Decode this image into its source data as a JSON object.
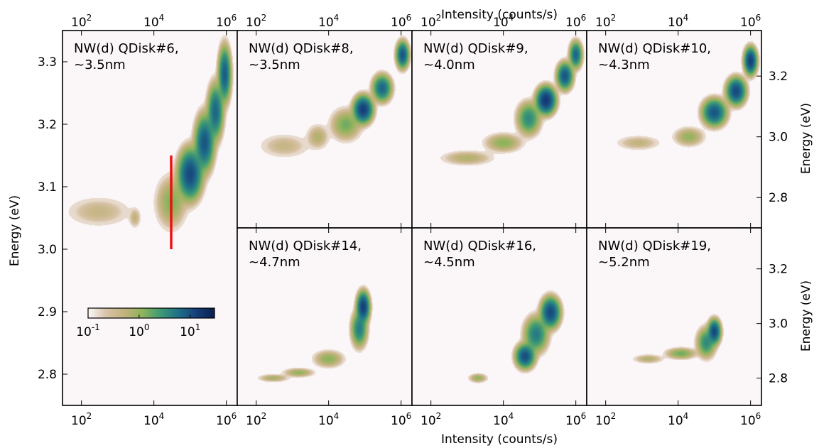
{
  "colors": {
    "background": "#fbf7f9",
    "colormap": [
      "#fbf7f9",
      "#d8c3a8",
      "#c2b27c",
      "#8fb35c",
      "#3f9a74",
      "#1f6f88",
      "#163d7a",
      "#0a1f4d"
    ],
    "marker_line": "#ee1111"
  },
  "chart_data": {
    "type": "heatmap",
    "x_axis": {
      "label_top": "Intensity (counts/s)",
      "label_bottom": "Intensity (counts/s)",
      "scale": "log",
      "range": [
        30,
        2000000
      ],
      "ticks": [
        {
          "value": 100,
          "base": "10",
          "exp": "2"
        },
        {
          "value": 10000,
          "base": "10",
          "exp": "4"
        },
        {
          "value": 1000000,
          "base": "10",
          "exp": "6"
        }
      ]
    },
    "y_axis_label": "Energy (eV)",
    "colorbar": {
      "scale": "log",
      "range": [
        0.1,
        30
      ],
      "ticks": [
        {
          "value": 0.1,
          "base": "10",
          "exp": "-1"
        },
        {
          "value": 1,
          "base": "10",
          "exp": "0"
        },
        {
          "value": 10,
          "base": "10",
          "exp": "1"
        }
      ]
    },
    "panels": [
      {
        "id": "qdisk6",
        "title_line1": "NW(d) QDisk#6,",
        "title_line2": "~3.5nm",
        "ylim": [
          2.75,
          3.35
        ],
        "yticks": [
          "2.8",
          "2.9",
          "3.0",
          "3.1",
          "3.2",
          "3.3"
        ],
        "ytick_side": "left",
        "marker_line": {
          "x": 30000,
          "y_from": 3.0,
          "y_to": 3.15
        },
        "blobs": [
          {
            "x": 300,
            "y": 3.06,
            "sx": 0.45,
            "sy": 0.012,
            "density": 0.3
          },
          {
            "x": 3000,
            "y": 3.05,
            "sx": 0.08,
            "sy": 0.008,
            "density": 0.35
          },
          {
            "x": 30000,
            "y": 3.075,
            "sx": 0.2,
            "sy": 0.02,
            "density": 1.0
          },
          {
            "x": 100000,
            "y": 3.12,
            "sx": 0.15,
            "sy": 0.018,
            "density": 10
          },
          {
            "x": 250000,
            "y": 3.17,
            "sx": 0.12,
            "sy": 0.02,
            "density": 8
          },
          {
            "x": 500000,
            "y": 3.22,
            "sx": 0.1,
            "sy": 0.02,
            "density": 6
          },
          {
            "x": 900000,
            "y": 3.28,
            "sx": 0.08,
            "sy": 0.02,
            "density": 7
          }
        ]
      },
      {
        "id": "qdisk8",
        "title_line1": "NW(d) QDisk#8,",
        "title_line2": "~3.5nm",
        "ylim": [
          2.7,
          3.35
        ],
        "yticks": [],
        "ytick_side": "none",
        "blobs": [
          {
            "x": 600,
            "y": 2.97,
            "sx": 0.35,
            "sy": 0.02,
            "density": 0.3
          },
          {
            "x": 5000,
            "y": 3.0,
            "sx": 0.15,
            "sy": 0.02,
            "density": 0.5
          },
          {
            "x": 30000,
            "y": 3.04,
            "sx": 0.2,
            "sy": 0.025,
            "density": 1.2
          },
          {
            "x": 90000,
            "y": 3.09,
            "sx": 0.12,
            "sy": 0.02,
            "density": 12
          },
          {
            "x": 300000,
            "y": 3.16,
            "sx": 0.12,
            "sy": 0.02,
            "density": 6
          },
          {
            "x": 1100000,
            "y": 3.27,
            "sx": 0.08,
            "sy": 0.02,
            "density": 8
          }
        ]
      },
      {
        "id": "qdisk9",
        "title_line1": "NW(d) QDisk#9,",
        "title_line2": "~4.0nm",
        "ylim": [
          2.7,
          3.35
        ],
        "yticks": [],
        "ytick_side": "none",
        "blobs": [
          {
            "x": 1000,
            "y": 2.93,
            "sx": 0.35,
            "sy": 0.012,
            "density": 0.5
          },
          {
            "x": 10000,
            "y": 2.98,
            "sx": 0.25,
            "sy": 0.015,
            "density": 0.9
          },
          {
            "x": 50000,
            "y": 3.06,
            "sx": 0.15,
            "sy": 0.025,
            "density": 3
          },
          {
            "x": 150000,
            "y": 3.12,
            "sx": 0.12,
            "sy": 0.02,
            "density": 14
          },
          {
            "x": 500000,
            "y": 3.2,
            "sx": 0.1,
            "sy": 0.02,
            "density": 8
          },
          {
            "x": 1000000,
            "y": 3.27,
            "sx": 0.08,
            "sy": 0.02,
            "density": 6
          }
        ]
      },
      {
        "id": "qdisk10",
        "title_line1": "NW(d) QDisk#10,",
        "title_line2": "~4.3nm",
        "ylim": [
          2.7,
          3.35
        ],
        "yticks": [
          "2.8",
          "3.0",
          "3.2"
        ],
        "ytick_side": "right",
        "blobs": [
          {
            "x": 800,
            "y": 2.98,
            "sx": 0.3,
            "sy": 0.012,
            "density": 0.35
          },
          {
            "x": 20000,
            "y": 3.0,
            "sx": 0.2,
            "sy": 0.015,
            "density": 0.8
          },
          {
            "x": 100000,
            "y": 3.08,
            "sx": 0.15,
            "sy": 0.02,
            "density": 8
          },
          {
            "x": 400000,
            "y": 3.15,
            "sx": 0.12,
            "sy": 0.02,
            "density": 10
          },
          {
            "x": 1000000,
            "y": 3.25,
            "sx": 0.08,
            "sy": 0.02,
            "density": 12
          }
        ]
      },
      {
        "id": "qdisk14",
        "title_line1": "NW(d) QDisk#14,",
        "title_line2": "~4.7nm",
        "ylim": [
          2.7,
          3.35
        ],
        "yticks": [],
        "ytick_side": "none",
        "blobs": [
          {
            "x": 300,
            "y": 2.8,
            "sx": 0.2,
            "sy": 0.007,
            "density": 0.6
          },
          {
            "x": 1500,
            "y": 2.82,
            "sx": 0.2,
            "sy": 0.008,
            "density": 0.8
          },
          {
            "x": 10000,
            "y": 2.87,
            "sx": 0.2,
            "sy": 0.015,
            "density": 0.9
          },
          {
            "x": 70000,
            "y": 2.98,
            "sx": 0.1,
            "sy": 0.03,
            "density": 4
          },
          {
            "x": 90000,
            "y": 3.06,
            "sx": 0.08,
            "sy": 0.025,
            "density": 12
          }
        ]
      },
      {
        "id": "qdisk16",
        "title_line1": "NW(d) QDisk#16,",
        "title_line2": "~4.5nm",
        "ylim": [
          2.7,
          3.35
        ],
        "yticks": [],
        "ytick_side": "none",
        "blobs": [
          {
            "x": 2000,
            "y": 2.8,
            "sx": 0.12,
            "sy": 0.008,
            "density": 0.8
          },
          {
            "x": 40000,
            "y": 2.88,
            "sx": 0.12,
            "sy": 0.02,
            "density": 9
          },
          {
            "x": 80000,
            "y": 2.96,
            "sx": 0.15,
            "sy": 0.03,
            "density": 4
          },
          {
            "x": 200000,
            "y": 3.04,
            "sx": 0.12,
            "sy": 0.025,
            "density": 10
          }
        ]
      },
      {
        "id": "qdisk19",
        "title_line1": "NW(d) QDisk#19,",
        "title_line2": "~5.2nm",
        "ylim": [
          2.7,
          3.35
        ],
        "yticks": [
          "2.8",
          "3.0",
          "3.2"
        ],
        "ytick_side": "right",
        "blobs": [
          {
            "x": 1500,
            "y": 2.87,
            "sx": 0.2,
            "sy": 0.008,
            "density": 0.5
          },
          {
            "x": 12000,
            "y": 2.89,
            "sx": 0.2,
            "sy": 0.01,
            "density": 1.2
          },
          {
            "x": 60000,
            "y": 2.93,
            "sx": 0.12,
            "sy": 0.025,
            "density": 3
          },
          {
            "x": 100000,
            "y": 2.97,
            "sx": 0.08,
            "sy": 0.02,
            "density": 10
          }
        ]
      }
    ]
  }
}
